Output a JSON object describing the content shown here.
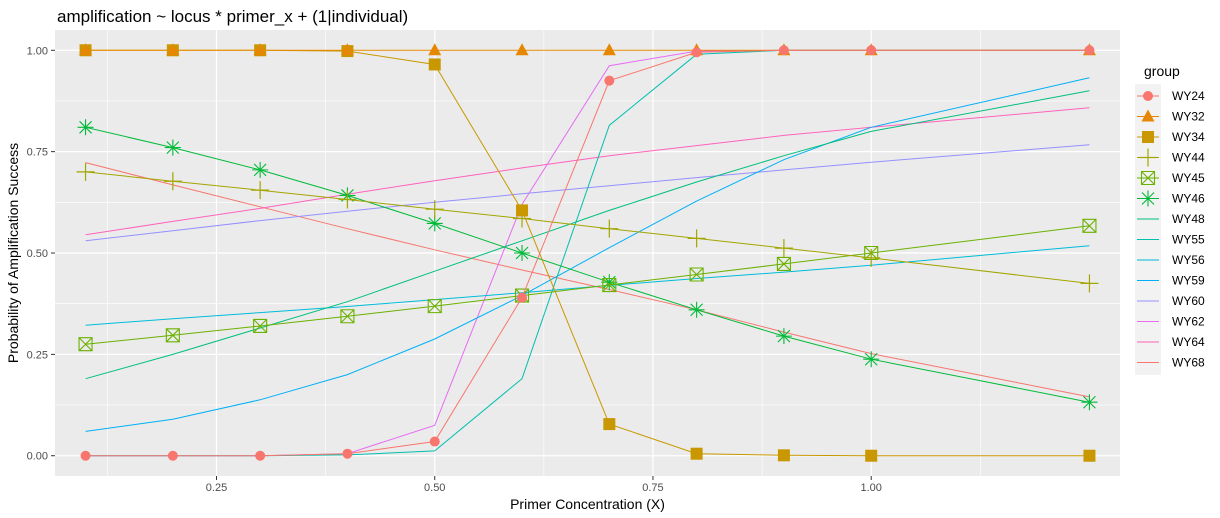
{
  "chart_data": {
    "type": "line",
    "title": "amplification ~  locus * primer_x + (1|individual)",
    "xlabel": "Primer Concentration (X)",
    "ylabel": "Probability of Amplification Success",
    "xlim": [
      0.065,
      1.285
    ],
    "ylim": [
      -0.05,
      1.05
    ],
    "xticks": [
      0.25,
      0.5,
      0.75,
      1.0
    ],
    "xtick_labels": [
      "0.25",
      "0.50",
      "0.75",
      "1.00"
    ],
    "yticks": [
      0,
      0.25,
      0.5,
      0.75,
      1.0
    ],
    "ytick_labels": [
      "0.00",
      "0.25",
      "0.50",
      "0.75",
      "1.00"
    ],
    "grid": true,
    "legend": {
      "title": "group",
      "position": "right"
    },
    "x": [
      0.1,
      0.2,
      0.3,
      0.4,
      0.5,
      0.6,
      0.7,
      0.8,
      0.9,
      1.0,
      1.25
    ],
    "series": [
      {
        "name": "WY24",
        "color": "#F8766D",
        "marker": "circle",
        "values": [
          0.0,
          0.0,
          0.0,
          0.005,
          0.035,
          0.39,
          0.925,
          0.995,
          1.0,
          1.0,
          1.0
        ]
      },
      {
        "name": "WY32",
        "color": "#E58700",
        "marker": "triangle",
        "values": [
          1.0,
          1.0,
          1.0,
          1.0,
          1.0,
          1.0,
          1.0,
          1.0,
          1.0,
          1.0,
          1.0
        ]
      },
      {
        "name": "WY34",
        "color": "#C99800",
        "marker": "square",
        "values": [
          1.0,
          1.0,
          1.0,
          0.998,
          0.965,
          0.605,
          0.078,
          0.005,
          0.001,
          0.0,
          0.0
        ]
      },
      {
        "name": "WY44",
        "color": "#A3A500",
        "marker": "plus",
        "values": [
          0.7,
          0.677,
          0.655,
          0.632,
          0.608,
          0.585,
          0.56,
          0.536,
          0.512,
          0.488,
          0.425
        ]
      },
      {
        "name": "WY45",
        "color": "#6BB100",
        "marker": "boxcross",
        "values": [
          0.275,
          0.297,
          0.32,
          0.344,
          0.369,
          0.395,
          0.421,
          0.447,
          0.473,
          0.5,
          0.567
        ]
      },
      {
        "name": "WY46",
        "color": "#00BA38",
        "marker": "asterisk",
        "values": [
          0.81,
          0.76,
          0.705,
          0.642,
          0.573,
          0.5,
          0.428,
          0.36,
          0.295,
          0.238,
          0.132
        ]
      },
      {
        "name": "WY48",
        "color": "#00BF7D",
        "marker": "none",
        "values": [
          0.19,
          0.25,
          0.315,
          0.38,
          0.455,
          0.53,
          0.605,
          0.675,
          0.74,
          0.8,
          0.9
        ]
      },
      {
        "name": "WY55",
        "color": "#00C0AF",
        "marker": "none",
        "values": [
          0.0,
          0.0,
          0.0,
          0.002,
          0.012,
          0.19,
          0.815,
          0.99,
          1.0,
          1.0,
          1.0
        ]
      },
      {
        "name": "WY56",
        "color": "#00BCD8",
        "marker": "none",
        "values": [
          0.322,
          0.338,
          0.353,
          0.368,
          0.385,
          0.402,
          0.42,
          0.437,
          0.453,
          0.47,
          0.518
        ]
      },
      {
        "name": "WY59",
        "color": "#00B0F6",
        "marker": "none",
        "values": [
          0.06,
          0.09,
          0.138,
          0.2,
          0.288,
          0.395,
          0.513,
          0.628,
          0.73,
          0.81,
          0.932
        ]
      },
      {
        "name": "WY60",
        "color": "#9590FF",
        "marker": "none",
        "values": [
          0.53,
          0.555,
          0.58,
          0.603,
          0.625,
          0.646,
          0.666,
          0.686,
          0.705,
          0.724,
          0.767
        ]
      },
      {
        "name": "WY62",
        "color": "#E76BF3",
        "marker": "none",
        "values": [
          0.0,
          0.0,
          0.0,
          0.005,
          0.075,
          0.62,
          0.962,
          0.998,
          1.0,
          1.0,
          1.0
        ]
      },
      {
        "name": "WY64",
        "color": "#FF62BC",
        "marker": "none",
        "values": [
          0.545,
          0.578,
          0.61,
          0.645,
          0.678,
          0.71,
          0.74,
          0.765,
          0.79,
          0.81,
          0.858
        ]
      },
      {
        "name": "WY68",
        "color": "#F8766D",
        "marker": "none",
        "values": [
          0.723,
          0.668,
          0.614,
          0.56,
          0.508,
          0.458,
          0.41,
          0.36,
          0.305,
          0.252,
          0.145
        ]
      }
    ]
  }
}
